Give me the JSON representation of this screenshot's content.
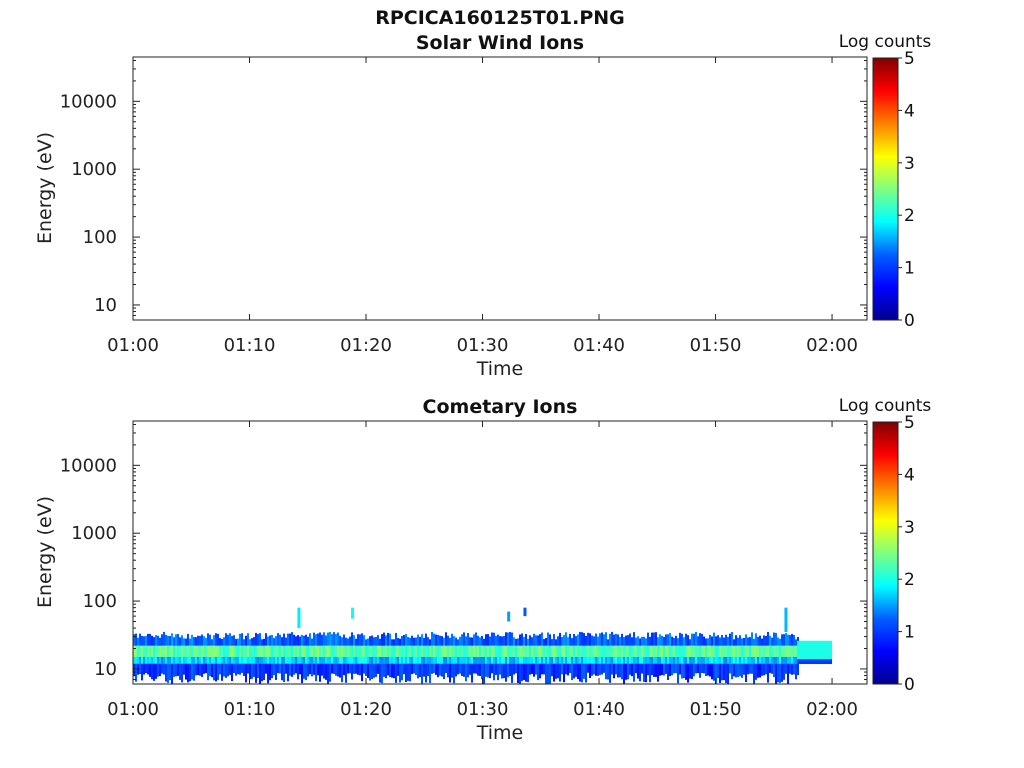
{
  "figure_title": "RPCICA160125T01.PNG",
  "colors": {
    "axis": "#222222",
    "colormap": [
      "#00008f",
      "#0000ff",
      "#00a0ff",
      "#00ffff",
      "#80ff80",
      "#ffff00",
      "#ff8000",
      "#ff0000",
      "#800000"
    ]
  },
  "chart_data": [
    {
      "type": "heatmap",
      "title": "Solar Wind Ions",
      "xlabel": "Time",
      "ylabel": "Energy (eV)",
      "x_ticks": [
        "01:00",
        "01:10",
        "01:20",
        "01:30",
        "01:40",
        "01:50",
        "02:00"
      ],
      "x_range_minutes": [
        0,
        63
      ],
      "y_ticks": [
        "10",
        "100",
        "1000",
        "10000"
      ],
      "y_scale": "log",
      "y_range": [
        6,
        45000
      ],
      "colorbar_label": "Log counts",
      "colorbar_ticks": [
        "0",
        "1",
        "2",
        "3",
        "4",
        "5"
      ],
      "colorbar_range": [
        0,
        5
      ],
      "data": "no counts"
    },
    {
      "type": "heatmap",
      "title": "Cometary Ions",
      "xlabel": "Time",
      "ylabel": "Energy (eV)",
      "x_ticks": [
        "01:00",
        "01:10",
        "01:20",
        "01:30",
        "01:40",
        "01:50",
        "02:00"
      ],
      "x_range_minutes": [
        0,
        63
      ],
      "y_ticks": [
        "10",
        "100",
        "1000",
        "10000"
      ],
      "y_scale": "log",
      "y_range": [
        6,
        45000
      ],
      "colorbar_label": "Log counts",
      "colorbar_ticks": [
        "0",
        "1",
        "2",
        "3",
        "4",
        "5"
      ],
      "colorbar_range": [
        0,
        5
      ],
      "bands": [
        {
          "energy_eV": [
            8,
            12
          ],
          "log_counts": 1.0
        },
        {
          "energy_eV": [
            12,
            15
          ],
          "log_counts": 1.7
        },
        {
          "energy_eV": [
            15,
            22
          ],
          "log_counts": 2.3
        },
        {
          "energy_eV": [
            22,
            32
          ],
          "log_counts": 1.2
        }
      ],
      "band_time_range_minutes": [
        0,
        57
      ],
      "steady_band": {
        "time_range_minutes": [
          57,
          60
        ],
        "energy_eV": [
          14,
          26
        ],
        "log_counts": 2.0
      },
      "spikes": [
        {
          "time_minutes": 14.2,
          "energy_eV": [
            40,
            80
          ],
          "log_counts": 1.8
        },
        {
          "time_minutes": 18.8,
          "energy_eV": [
            55,
            80
          ],
          "log_counts": 1.9
        },
        {
          "time_minutes": 32.2,
          "energy_eV": [
            50,
            70
          ],
          "log_counts": 1.5
        },
        {
          "time_minutes": 33.6,
          "energy_eV": [
            60,
            80
          ],
          "log_counts": 1.2
        },
        {
          "time_minutes": 56.0,
          "energy_eV": [
            35,
            80
          ],
          "log_counts": 1.6
        }
      ]
    }
  ]
}
